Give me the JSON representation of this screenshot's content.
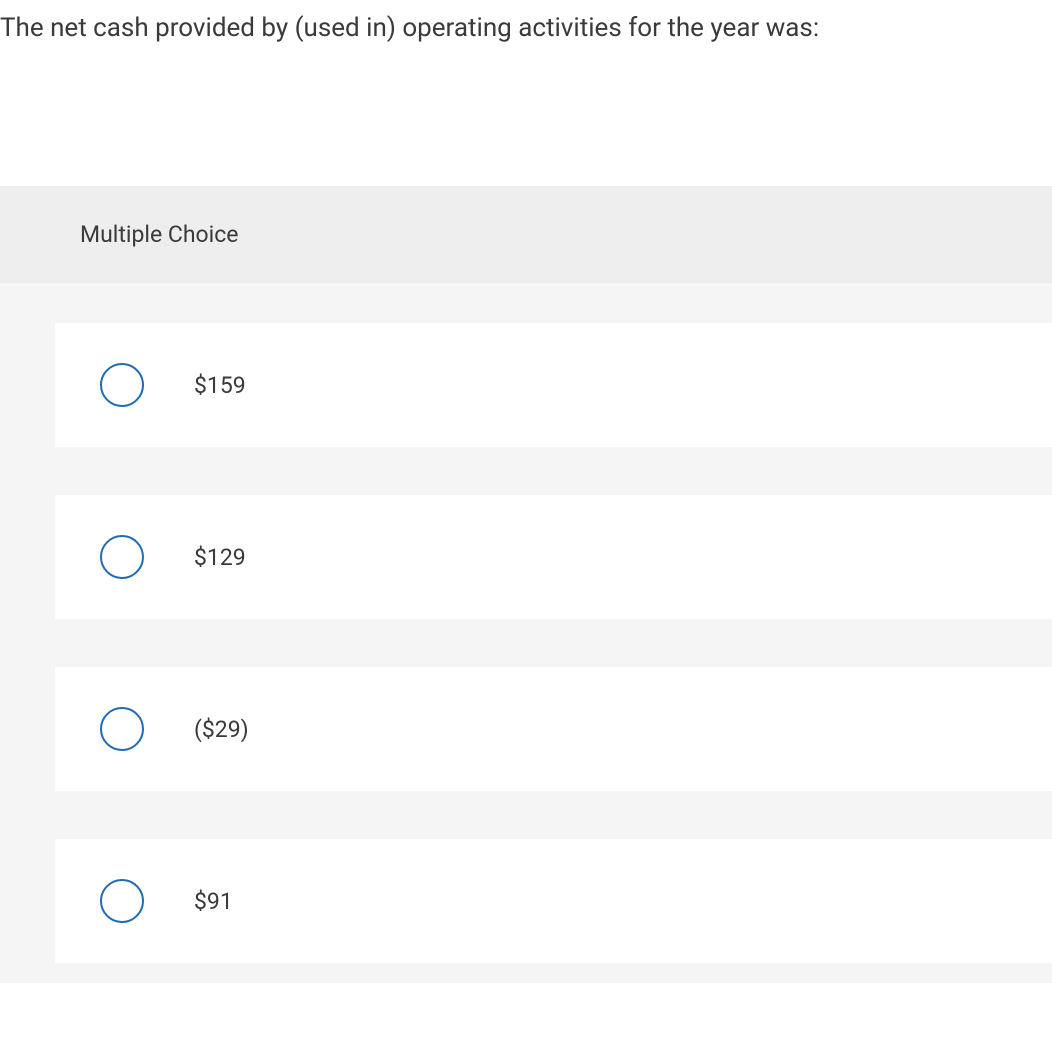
{
  "question": {
    "text": "The net cash provided by (used in) operating activities for the year was:"
  },
  "multipleChoice": {
    "header": "Multiple Choice",
    "options": [
      {
        "label": "$159"
      },
      {
        "label": "$129"
      },
      {
        "label": "($29)"
      },
      {
        "label": "$91"
      }
    ]
  },
  "styling": {
    "radio_border_color": "#1f6bb5",
    "text_color": "#3a3a3a",
    "option_bg": "#ffffff",
    "options_area_bg": "#f5f5f5",
    "header_bg": "#eeeeee",
    "question_fontsize": 26,
    "option_fontsize": 23
  }
}
